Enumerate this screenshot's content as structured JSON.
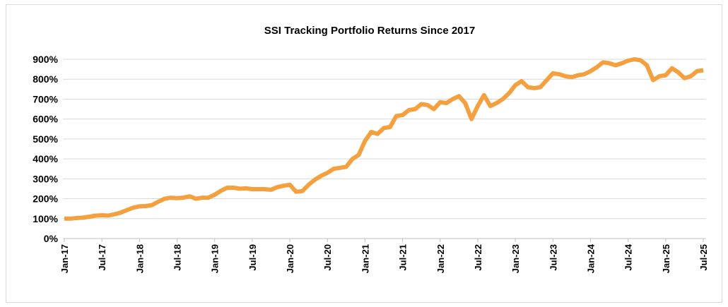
{
  "chart_data": {
    "type": "line",
    "title": "SSI Tracking Portfolio Returns Since 2017",
    "xlabel": "",
    "ylabel": "",
    "ylim": [
      0,
      900
    ],
    "y_ticks": [
      "0%",
      "100%",
      "200%",
      "300%",
      "400%",
      "500%",
      "600%",
      "700%",
      "800%",
      "900%"
    ],
    "x_ticks": [
      "Jan-17",
      "Jul-17",
      "Jan-18",
      "Jul-18",
      "Jan-19",
      "Jul-19",
      "Jan-20",
      "Jul-20",
      "Jan-21",
      "Jul-21",
      "Jan-22",
      "Jul-22",
      "Jan-23",
      "Jul-23",
      "Jan-24",
      "Jul-24",
      "Jan-25",
      "Jul-25"
    ],
    "grid": true,
    "legend": "none",
    "series_color": "#F4A03F",
    "series": [
      {
        "values": [
          100,
          100,
          103,
          105,
          110,
          115,
          117,
          115,
          122,
          130,
          143,
          155,
          162,
          163,
          168,
          185,
          200,
          205,
          203,
          205,
          212,
          200,
          205,
          205,
          220,
          240,
          255,
          255,
          250,
          252,
          248,
          248,
          248,
          245,
          258,
          265,
          270,
          235,
          238,
          270,
          295,
          315,
          330,
          350,
          355,
          360,
          400,
          420,
          490,
          535,
          525,
          555,
          560,
          615,
          620,
          645,
          650,
          675,
          670,
          650,
          685,
          680,
          700,
          715,
          680,
          600,
          665,
          720,
          665,
          680,
          700,
          730,
          770,
          790,
          760,
          755,
          760,
          795,
          830,
          825,
          815,
          810,
          820,
          825,
          840,
          860,
          885,
          880,
          870,
          880,
          893,
          900,
          895,
          870,
          795,
          815,
          820,
          855,
          835,
          805,
          815,
          840,
          845
        ]
      }
    ]
  }
}
